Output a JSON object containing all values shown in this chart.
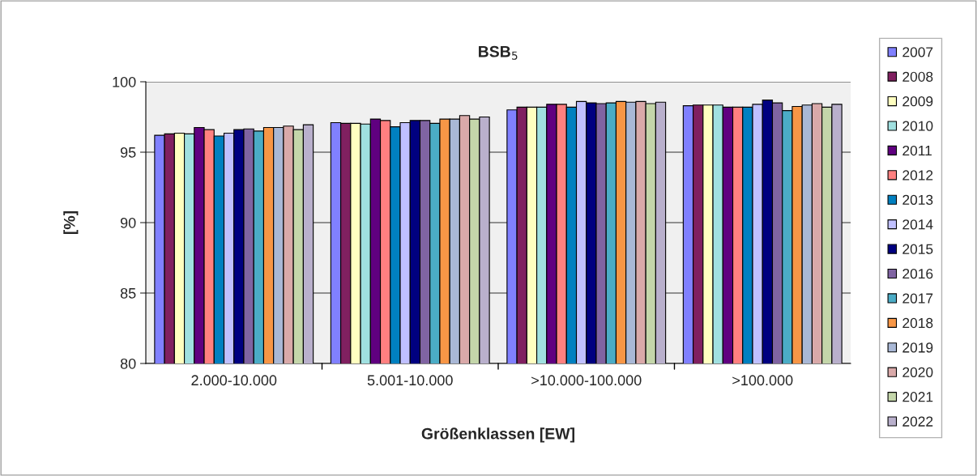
{
  "chart_data": {
    "type": "bar",
    "title": "BSB$_{5}$",
    "xlabel": "Größenklassen [EW]",
    "ylabel": "[%]",
    "categories": [
      "2.000-10.000",
      "5.001-10.000",
      ">10.000-100.000",
      ">100.000"
    ],
    "ylim": [
      80,
      100
    ],
    "yticks": [
      80,
      85,
      90,
      95,
      100
    ],
    "grid": "y",
    "legend": "right",
    "series": [
      {
        "name": "2007",
        "color": "#8080ff",
        "values": [
          96.2,
          97.1,
          98.0,
          98.3
        ]
      },
      {
        "name": "2008",
        "color": "#802060",
        "values": [
          96.3,
          97.05,
          98.2,
          98.35
        ]
      },
      {
        "name": "2009",
        "color": "#ffffc0",
        "values": [
          96.35,
          97.05,
          98.2,
          98.35
        ]
      },
      {
        "name": "2010",
        "color": "#a0e0e0",
        "values": [
          96.3,
          97.0,
          98.2,
          98.35
        ]
      },
      {
        "name": "2011",
        "color": "#600080",
        "values": [
          96.75,
          97.35,
          98.4,
          98.2
        ]
      },
      {
        "name": "2012",
        "color": "#ff8080",
        "values": [
          96.6,
          97.25,
          98.4,
          98.2
        ]
      },
      {
        "name": "2013",
        "color": "#0080c0",
        "values": [
          96.15,
          96.8,
          98.2,
          98.2
        ]
      },
      {
        "name": "2014",
        "color": "#c0c0ff",
        "values": [
          96.35,
          97.1,
          98.6,
          98.4
        ]
      },
      {
        "name": "2015",
        "color": "#000080",
        "values": [
          96.6,
          97.25,
          98.5,
          98.7
        ]
      },
      {
        "name": "2016",
        "color": "#8064a2",
        "values": [
          96.65,
          97.25,
          98.45,
          98.5
        ]
      },
      {
        "name": "2017",
        "color": "#4bacc6",
        "values": [
          96.5,
          97.05,
          98.5,
          97.95
        ]
      },
      {
        "name": "2018",
        "color": "#f79646",
        "values": [
          96.75,
          97.35,
          98.6,
          98.25
        ]
      },
      {
        "name": "2019",
        "color": "#a9b8d6",
        "values": [
          96.75,
          97.35,
          98.55,
          98.35
        ]
      },
      {
        "name": "2020",
        "color": "#d9a9a9",
        "values": [
          96.85,
          97.6,
          98.6,
          98.45
        ]
      },
      {
        "name": "2021",
        "color": "#c4d6aa",
        "values": [
          96.6,
          97.35,
          98.45,
          98.2
        ]
      },
      {
        "name": "2022",
        "color": "#b9b0cc",
        "values": [
          96.95,
          97.5,
          98.55,
          98.4
        ]
      }
    ]
  }
}
